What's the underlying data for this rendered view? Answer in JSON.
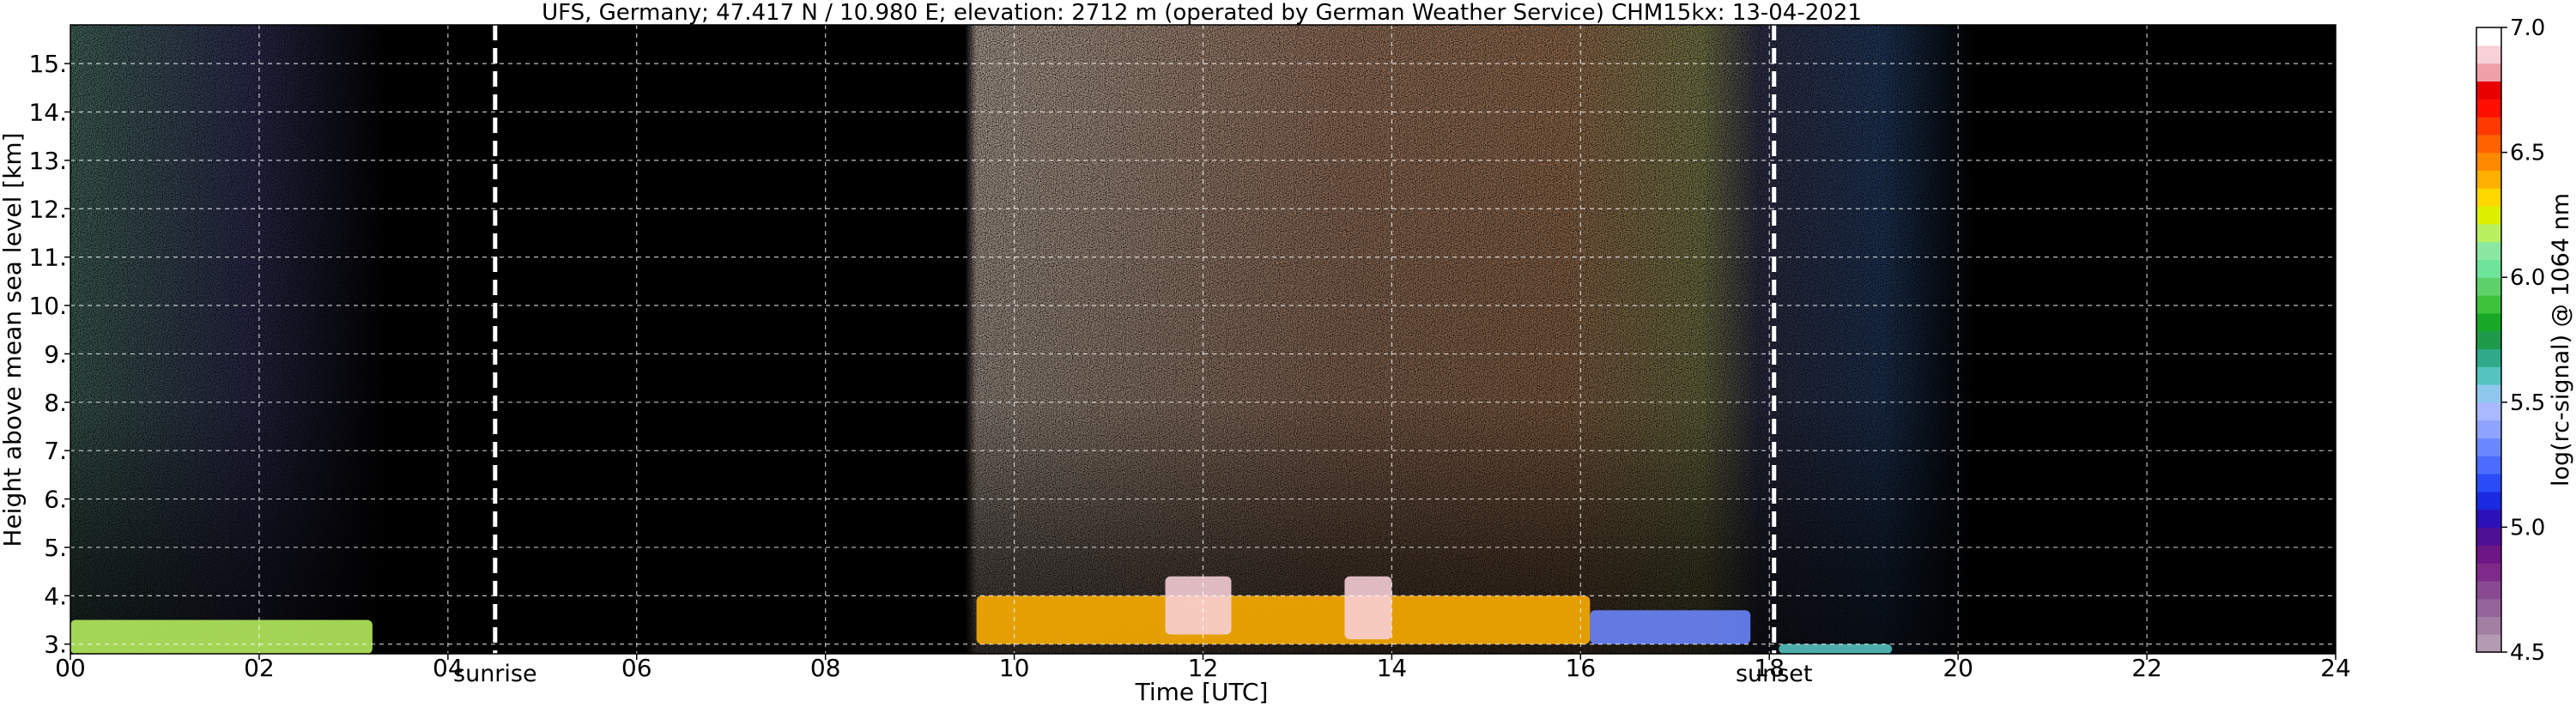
{
  "chart_data": {
    "type": "heatmap",
    "title": "UFS, Germany; 47.417 N / 10.980 E; elevation: 2712 m  (operated by German Weather Service)    CHM15kx: 13-04-2021",
    "xlabel": "Time [UTC]",
    "ylabel": "Height above mean sea level [km]",
    "xlim": [
      0,
      24
    ],
    "ylim": [
      2.8,
      15.8
    ],
    "x_ticks": [
      {
        "value": 0,
        "label": "00"
      },
      {
        "value": 2,
        "label": "02"
      },
      {
        "value": 4,
        "label": "04"
      },
      {
        "value": 6,
        "label": "06"
      },
      {
        "value": 8,
        "label": "08"
      },
      {
        "value": 10,
        "label": "10"
      },
      {
        "value": 12,
        "label": "12"
      },
      {
        "value": 14,
        "label": "14"
      },
      {
        "value": 16,
        "label": "16"
      },
      {
        "value": 18,
        "label": "18"
      },
      {
        "value": 20,
        "label": "20"
      },
      {
        "value": 22,
        "label": "22"
      },
      {
        "value": 24,
        "label": "24"
      }
    ],
    "y_ticks": [
      {
        "value": 3,
        "label": "3."
      },
      {
        "value": 4,
        "label": "4."
      },
      {
        "value": 5,
        "label": "5."
      },
      {
        "value": 6,
        "label": "6."
      },
      {
        "value": 7,
        "label": "7."
      },
      {
        "value": 8,
        "label": "8."
      },
      {
        "value": 9,
        "label": "9."
      },
      {
        "value": 10,
        "label": "10."
      },
      {
        "value": 11,
        "label": "11."
      },
      {
        "value": 12,
        "label": "12."
      },
      {
        "value": 13,
        "label": "13."
      },
      {
        "value": 14,
        "label": "14."
      },
      {
        "value": 15,
        "label": "15."
      }
    ],
    "grid": true,
    "markers": [
      {
        "name": "sunrise",
        "label": "sunrise",
        "time": 4.5
      },
      {
        "name": "sunset",
        "label": "sunset",
        "time": 18.05
      }
    ],
    "colorbar": {
      "label": "log(rc-signal) @ 1064 nm",
      "range": [
        4.5,
        7.0
      ],
      "ticks": [
        {
          "value": 4.5,
          "label": "4.5"
        },
        {
          "value": 5.0,
          "label": "5.0"
        },
        {
          "value": 5.5,
          "label": "5.5"
        },
        {
          "value": 6.0,
          "label": "6.0"
        },
        {
          "value": 6.5,
          "label": "6.5"
        },
        {
          "value": 7.0,
          "label": "7.0"
        }
      ],
      "colors": [
        "#b39bb3",
        "#a37fa3",
        "#95649a",
        "#8a4a92",
        "#7f2a8a",
        "#6e1684",
        "#4d1094",
        "#2c10b8",
        "#1a2ae0",
        "#2a4cf8",
        "#4a6cff",
        "#6c88ff",
        "#8ea2ff",
        "#a9b8ff",
        "#8fc8ee",
        "#55c4c0",
        "#2eaa88",
        "#1f9a4a",
        "#18a828",
        "#3ec23c",
        "#5ed26a",
        "#6ee39a",
        "#8ae8a0",
        "#b8f060",
        "#dcf000",
        "#ffd800",
        "#ffb000",
        "#ff8a00",
        "#ff6200",
        "#ff3a00",
        "#ff1000",
        "#e80000",
        "#f0a0a8",
        "#f8d0d8",
        "#ffffff"
      ]
    },
    "series": [
      {
        "time_range": [
          0.0,
          3.2
        ],
        "height_range": [
          2.8,
          3.5
        ],
        "signal_level": 6.2
      },
      {
        "time_range": [
          9.6,
          16.1
        ],
        "height_range": [
          3.0,
          4.0
        ],
        "signal_level": 6.4
      },
      {
        "time_range": [
          11.6,
          12.3
        ],
        "height_range": [
          3.2,
          4.4
        ],
        "signal_level": 6.9
      },
      {
        "time_range": [
          13.5,
          14.0
        ],
        "height_range": [
          3.1,
          4.4
        ],
        "signal_level": 6.9
      },
      {
        "time_range": [
          16.1,
          17.8
        ],
        "height_range": [
          3.0,
          3.7
        ],
        "signal_level": 5.3
      },
      {
        "time_range": [
          18.1,
          19.3
        ],
        "height_range": [
          2.8,
          3.0
        ],
        "signal_level": 5.6
      }
    ]
  }
}
